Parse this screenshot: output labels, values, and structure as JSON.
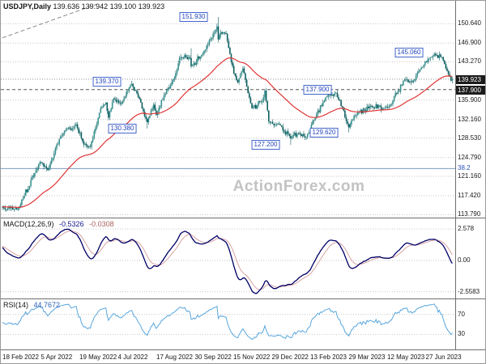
{
  "title": {
    "symbol": "USDJPY,Daily",
    "values": "139.636 139.942 139.100 139.923"
  },
  "watermark": "ActionForex.com",
  "colors": {
    "up": "#35918f",
    "down": "#0d5e60",
    "wick": "#0d5e60",
    "ma": "#e03434",
    "macd": "#000066",
    "macd_signal": "#d49a9a",
    "rsi": "#58a6dd",
    "grid": "#c6c6c6",
    "level_line": "#555555",
    "current_line": "#909090",
    "trend_line": "#8a8a8a",
    "fib_line": "#7b9cc0",
    "pivot_border": "#4466cc",
    "pivot_text": "#2244bb",
    "axis_dark_bg": "#1c1c1c",
    "watermark_color": "#c3c3c3"
  },
  "chart_data": {
    "type": "candlestick",
    "symbol": "USDJPY",
    "timeframe": "Daily",
    "last_ohlc": {
      "open": 139.636,
      "high": 139.942,
      "low": 139.1,
      "close": 139.923
    },
    "price_axis": {
      "min": 113.2,
      "max": 155.05,
      "gridlines": [
        150.64,
        146.9,
        143.27,
        135.9,
        132.16,
        128.53,
        124.79,
        121.16,
        117.42,
        113.79
      ],
      "current_price": 139.923,
      "level_line": 137.9
    },
    "fib_level": {
      "label": "38.2",
      "price": 122.66
    },
    "trendline": {
      "i1": 0,
      "p1": 147.9,
      "i2": 73,
      "p2": 154.4
    },
    "x_axis_dates": [
      "18 Feb 2022",
      "5 Apr 2022",
      "19 May 2022",
      "4 Jul 2022",
      "17 Aug 2022",
      "30 Sep 2022",
      "15 Nov 2022",
      "29 Dec 2022",
      "13 Feb 2023",
      "29 Mar 2023",
      "12 May 2023",
      "27 Jun 2023"
    ],
    "candles_n": 349,
    "close_anchors": [
      [
        0,
        115.3
      ],
      [
        6,
        115.0
      ],
      [
        12,
        114.9
      ],
      [
        29,
        123.9
      ],
      [
        35,
        122.4
      ],
      [
        45,
        128.9
      ],
      [
        51,
        130.6
      ],
      [
        53,
        130.1
      ],
      [
        57,
        131.2
      ],
      [
        63,
        127.3
      ],
      [
        68,
        126.9
      ],
      [
        76,
        134.3
      ],
      [
        80,
        135.4
      ],
      [
        82,
        132.5
      ],
      [
        86,
        136.2
      ],
      [
        92,
        135.2
      ],
      [
        100,
        139.0
      ],
      [
        106,
        136.1
      ],
      [
        112,
        131.6
      ],
      [
        117,
        135.0
      ],
      [
        119,
        133.0
      ],
      [
        125,
        136.8
      ],
      [
        133,
        140.2
      ],
      [
        137,
        144.1
      ],
      [
        145,
        144.0
      ],
      [
        146,
        142.4
      ],
      [
        154,
        144.6
      ],
      [
        166,
        150.1
      ],
      [
        167,
        147.6
      ],
      [
        169,
        149.0
      ],
      [
        173,
        148.7
      ],
      [
        179,
        141.0
      ],
      [
        182,
        139.3
      ],
      [
        186,
        142.0
      ],
      [
        193,
        134.3
      ],
      [
        201,
        135.6
      ],
      [
        203,
        137.7
      ],
      [
        206,
        131.8
      ],
      [
        215,
        131.0
      ],
      [
        223,
        128.5
      ],
      [
        229,
        129.5
      ],
      [
        235,
        128.7
      ],
      [
        250,
        136.4
      ],
      [
        258,
        137.3
      ],
      [
        268,
        130.6
      ],
      [
        272,
        132.8
      ],
      [
        285,
        134.7
      ],
      [
        295,
        134.3
      ],
      [
        299,
        134.6
      ],
      [
        311,
        139.8
      ],
      [
        317,
        139.4
      ],
      [
        323,
        141.8
      ],
      [
        334,
        144.8
      ],
      [
        340,
        144.2
      ],
      [
        344,
        141.5
      ],
      [
        347,
        139.64
      ],
      [
        348,
        139.92
      ]
    ],
    "forced_wicks": [
      {
        "i": 100,
        "h": 139.38
      },
      {
        "i": 112,
        "l": 130.4
      },
      {
        "i": 146,
        "h": 145.9
      },
      {
        "i": 167,
        "h": 151.93
      },
      {
        "i": 223,
        "l": 127.22
      },
      {
        "i": 268,
        "l": 129.64
      },
      {
        "i": 334,
        "h": 145.07
      },
      {
        "i": 348,
        "h": 139.942,
        "l": 139.1
      }
    ],
    "pivot_labels": [
      {
        "text": "139.370",
        "i": 100,
        "price": 139.37
      },
      {
        "text": "130.380",
        "i": 112,
        "price": 130.38
      },
      {
        "text": "151.930",
        "i": 167,
        "price": 151.93
      },
      {
        "text": "127.200",
        "i": 223,
        "price": 127.2
      },
      {
        "text": "137.900",
        "i": 263,
        "price": 137.9
      },
      {
        "text": "129.620",
        "i": 268,
        "price": 129.62
      },
      {
        "text": "145.060",
        "i": 334,
        "price": 145.06
      }
    ],
    "moving_average": {
      "type": "EMA",
      "period": 55
    }
  },
  "macd": {
    "label": "MACD(12,26,9)",
    "value_main": "-0.5326",
    "value_signal": "-0.0308",
    "params": {
      "fast": 12,
      "slow": 26,
      "signal": 9
    },
    "axis": {
      "max": 2.578,
      "min": -2.5583,
      "max_label": "2.578",
      "zero_label": "0.00",
      "min_label": "-2.5583"
    }
  },
  "rsi": {
    "label": "RSI(14)",
    "value": "44.7672",
    "period": 14,
    "levels": [
      70,
      30
    ]
  }
}
